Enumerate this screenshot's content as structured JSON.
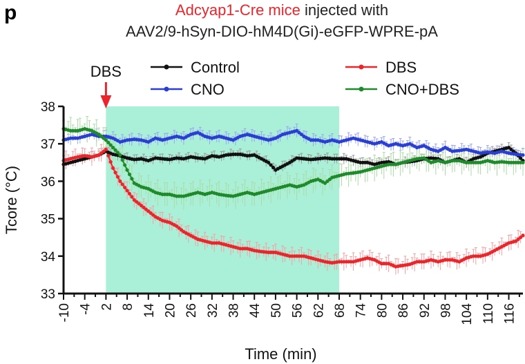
{
  "panel_label": "p",
  "title_line1_red": "Adcyap1-Cre mice",
  "title_line1_black": " injected with",
  "title_line2": "AAV2/9-hSyn-DIO-hM4D(Gi)-eGFP-WPRE-pA",
  "chart_data": {
    "type": "line",
    "xlabel": "Time (min)",
    "ylabel": "Tcore (°C)",
    "xlim": [
      -10,
      120
    ],
    "ylim": [
      33,
      38
    ],
    "yticks": [
      33,
      34,
      35,
      36,
      37,
      38
    ],
    "xticks": [
      -10,
      -4,
      2,
      8,
      14,
      20,
      26,
      32,
      38,
      44,
      50,
      56,
      62,
      68,
      74,
      80,
      86,
      92,
      98,
      104,
      110,
      116
    ],
    "shaded_region": {
      "x": [
        2,
        68
      ],
      "color": "#aaf0d9"
    },
    "annotation": {
      "text": "DBS",
      "x": 2,
      "arrow_color": "#e8262b"
    },
    "legend_position": "top",
    "series": [
      {
        "name": "Control",
        "color": "#111111",
        "error_color": "#9a9a9a",
        "x": [
          -10,
          -8,
          -6,
          -4,
          -2,
          0,
          2,
          4,
          6,
          8,
          10,
          12,
          14,
          16,
          18,
          20,
          22,
          24,
          26,
          28,
          30,
          32,
          34,
          36,
          38,
          40,
          42,
          44,
          46,
          48,
          50,
          52,
          54,
          56,
          58,
          60,
          62,
          64,
          66,
          68,
          70,
          72,
          74,
          76,
          78,
          80,
          82,
          84,
          86,
          88,
          90,
          92,
          94,
          96,
          98,
          100,
          102,
          104,
          106,
          108,
          110,
          112,
          114,
          116,
          118,
          120
        ],
        "y": [
          36.45,
          36.5,
          36.55,
          36.6,
          36.65,
          36.7,
          36.8,
          36.72,
          36.68,
          36.62,
          36.58,
          36.6,
          36.55,
          36.62,
          36.6,
          36.58,
          36.62,
          36.6,
          36.65,
          36.62,
          36.6,
          36.68,
          36.65,
          36.7,
          36.72,
          36.72,
          36.68,
          36.7,
          36.6,
          36.5,
          36.3,
          36.4,
          36.5,
          36.62,
          36.6,
          36.58,
          36.6,
          36.62,
          36.6,
          36.6,
          36.6,
          36.55,
          36.5,
          36.5,
          36.45,
          36.5,
          36.52,
          36.45,
          36.5,
          36.52,
          36.55,
          36.6,
          36.62,
          36.6,
          36.5,
          36.55,
          36.6,
          36.5,
          36.6,
          36.65,
          36.75,
          36.8,
          36.85,
          36.9,
          36.75,
          36.55
        ],
        "error": 0.12
      },
      {
        "name": "CNO",
        "color": "#2a3fd1",
        "error_color": "#9aa4f2",
        "x": [
          -10,
          -8,
          -6,
          -4,
          -2,
          0,
          2,
          4,
          6,
          8,
          10,
          12,
          14,
          16,
          18,
          20,
          22,
          24,
          26,
          28,
          30,
          32,
          34,
          36,
          38,
          40,
          42,
          44,
          46,
          48,
          50,
          52,
          54,
          56,
          58,
          60,
          62,
          64,
          66,
          68,
          70,
          72,
          74,
          76,
          78,
          80,
          82,
          84,
          86,
          88,
          90,
          92,
          94,
          96,
          98,
          100,
          102,
          104,
          106,
          108,
          110,
          112,
          114,
          116,
          118,
          120
        ],
        "y": [
          37.1,
          37.15,
          37.15,
          37.2,
          37.25,
          37.2,
          37.2,
          37.15,
          37.05,
          37.1,
          37.12,
          37.1,
          37.05,
          37.15,
          37.1,
          37.15,
          37.2,
          37.15,
          37.25,
          37.3,
          37.2,
          37.15,
          37.2,
          37.15,
          37.1,
          37.2,
          37.25,
          37.2,
          37.15,
          37.1,
          37.15,
          37.25,
          37.3,
          37.35,
          37.2,
          37.1,
          37.1,
          37.05,
          37.1,
          37.05,
          37.1,
          37.15,
          37.1,
          37.05,
          37.0,
          37.05,
          36.95,
          37.0,
          36.95,
          37.0,
          36.9,
          36.95,
          36.85,
          36.8,
          36.9,
          36.8,
          36.82,
          36.85,
          36.8,
          36.75,
          36.78,
          36.75,
          36.8,
          36.75,
          36.72,
          36.7
        ],
        "error": 0.15
      },
      {
        "name": "DBS",
        "color": "#e8262b",
        "error_color": "#f2a0a2",
        "x": [
          -10,
          -8,
          -6,
          -4,
          -2,
          0,
          2,
          4,
          6,
          8,
          10,
          12,
          14,
          16,
          18,
          20,
          22,
          24,
          26,
          28,
          30,
          32,
          34,
          36,
          38,
          40,
          42,
          44,
          46,
          48,
          50,
          52,
          54,
          56,
          58,
          60,
          62,
          64,
          66,
          68,
          70,
          72,
          74,
          76,
          78,
          80,
          82,
          84,
          86,
          88,
          90,
          92,
          94,
          96,
          98,
          100,
          102,
          104,
          106,
          108,
          110,
          112,
          114,
          116,
          118,
          120
        ],
        "y": [
          36.55,
          36.6,
          36.65,
          36.68,
          36.65,
          36.7,
          36.85,
          36.35,
          36.0,
          35.75,
          35.5,
          35.35,
          35.2,
          35.05,
          34.95,
          34.9,
          34.8,
          34.65,
          34.55,
          34.45,
          34.4,
          34.35,
          34.35,
          34.3,
          34.25,
          34.2,
          34.2,
          34.15,
          34.12,
          34.1,
          34.1,
          34.05,
          34.0,
          34.0,
          34.0,
          33.95,
          33.9,
          33.85,
          33.82,
          33.85,
          33.85,
          33.85,
          33.9,
          33.95,
          33.9,
          33.8,
          33.8,
          33.72,
          33.75,
          33.78,
          33.85,
          33.85,
          33.9,
          33.85,
          33.9,
          33.9,
          33.85,
          33.95,
          34.0,
          34.0,
          34.05,
          34.15,
          34.25,
          34.35,
          34.4,
          34.55
        ],
        "error": 0.2
      },
      {
        "name": "CNO+DBS",
        "color": "#1f8a2c",
        "error_color": "#a9dca4",
        "x": [
          -10,
          -8,
          -6,
          -4,
          -2,
          0,
          2,
          4,
          6,
          8,
          10,
          12,
          14,
          16,
          18,
          20,
          22,
          24,
          26,
          28,
          30,
          32,
          34,
          36,
          38,
          40,
          42,
          44,
          46,
          48,
          50,
          52,
          54,
          56,
          58,
          60,
          62,
          64,
          66,
          68,
          70,
          72,
          74,
          76,
          78,
          80,
          82,
          84,
          86,
          88,
          90,
          92,
          94,
          96,
          98,
          100,
          102,
          104,
          106,
          108,
          110,
          112,
          114,
          116,
          118,
          120
        ],
        "y": [
          37.4,
          37.35,
          37.35,
          37.4,
          37.35,
          37.25,
          37.1,
          36.9,
          36.7,
          36.3,
          35.95,
          35.85,
          35.8,
          35.7,
          35.65,
          35.65,
          35.6,
          35.6,
          35.65,
          35.7,
          35.65,
          35.7,
          35.65,
          35.62,
          35.6,
          35.65,
          35.7,
          35.65,
          35.7,
          35.75,
          35.8,
          35.85,
          35.9,
          35.85,
          35.9,
          36.0,
          36.05,
          35.95,
          36.1,
          36.15,
          36.2,
          36.22,
          36.25,
          36.3,
          36.35,
          36.4,
          36.45,
          36.45,
          36.5,
          36.55,
          36.6,
          36.62,
          36.5,
          36.55,
          36.5,
          36.55,
          36.55,
          36.5,
          36.5,
          36.5,
          36.55,
          36.5,
          36.52,
          36.5,
          36.5,
          36.5
        ],
        "error": 0.3
      }
    ]
  }
}
